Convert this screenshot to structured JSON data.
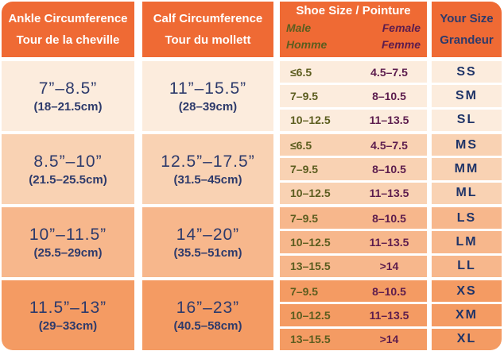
{
  "header": {
    "ankle_en": "Ankle Circumference",
    "ankle_fr": "Tour de la cheville",
    "calf_en": "Calf Circumference",
    "calf_fr": "Tour du mollett",
    "shoe_title": "Shoe Size / Pointure",
    "male_en": "Male",
    "male_fr": "Homme",
    "female_en": "Female",
    "female_fr": "Femme",
    "size_en": "Your Size",
    "size_fr": "Grandeur"
  },
  "groups": [
    {
      "ankle_in": "7”–8.5”",
      "ankle_cm": "(18–21.5cm)",
      "calf_in": "11”–15.5”",
      "calf_cm": "(28–39cm)",
      "rows": [
        {
          "male": "≤6.5",
          "female": "4.5–7.5",
          "size": "SS"
        },
        {
          "male": "7–9.5",
          "female": "8–10.5",
          "size": "SM"
        },
        {
          "male": "10–12.5",
          "female": "11–13.5",
          "size": "SL"
        }
      ]
    },
    {
      "ankle_in": "8.5”–10”",
      "ankle_cm": "(21.5–25.5cm)",
      "calf_in": "12.5”–17.5”",
      "calf_cm": "(31.5–45cm)",
      "rows": [
        {
          "male": "≤6.5",
          "female": "4.5–7.5",
          "size": "MS"
        },
        {
          "male": "7–9.5",
          "female": "8–10.5",
          "size": "MM"
        },
        {
          "male": "10–12.5",
          "female": "11–13.5",
          "size": "ML"
        }
      ]
    },
    {
      "ankle_in": "10”–11.5”",
      "ankle_cm": "(25.5–29cm)",
      "calf_in": "14”–20”",
      "calf_cm": "(35.5–51cm)",
      "rows": [
        {
          "male": "7–9.5",
          "female": "8–10.5",
          "size": "LS"
        },
        {
          "male": "10–12.5",
          "female": "11–13.5",
          "size": "LM"
        },
        {
          "male": "13–15.5",
          "female": ">14",
          "size": "LL"
        }
      ]
    },
    {
      "ankle_in": "11.5”–13”",
      "ankle_cm": "(29–33cm)",
      "calf_in": "16”–23”",
      "calf_cm": "(40.5–58cm)",
      "rows": [
        {
          "male": "7–9.5",
          "female": "8–10.5",
          "size": "XS"
        },
        {
          "male": "10–12.5",
          "female": "11–13.5",
          "size": "XM"
        },
        {
          "male": "13–15.5",
          "female": ">14",
          "size": "XL"
        }
      ]
    }
  ],
  "colors": {
    "header_bg": "#ef6a34",
    "group1_bg": "#fcecdd",
    "group2_bg": "#f9d2b3",
    "group3_bg": "#f7b78c",
    "group4_bg": "#f49b63",
    "header_text": "#ffffff",
    "navy_text": "#2d3a6b",
    "male_text": "#5c5d1f",
    "female_text": "#5c1c4d"
  }
}
